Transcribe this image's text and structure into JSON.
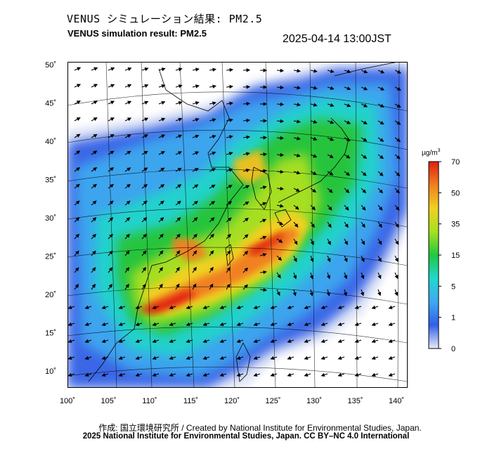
{
  "header": {
    "title_ja": "VENUS シミュレーション結果: PM2.5",
    "title_en": "VENUS simulation result: PM2.5",
    "timestamp": "2025-04-14 13:00JST"
  },
  "map": {
    "lat_labels": [
      "50˚",
      "45˚",
      "40˚",
      "35˚",
      "30˚",
      "25˚",
      "20˚",
      "15˚",
      "10˚"
    ],
    "lon_labels": [
      "100˚",
      "105˚",
      "110˚",
      "115˚",
      "120˚",
      "125˚",
      "130˚",
      "135˚",
      "140˚"
    ],
    "lat_ticks": [
      50,
      45,
      40,
      35,
      30,
      25,
      20,
      15,
      10
    ],
    "lon_ticks": [
      100,
      105,
      110,
      115,
      120,
      125,
      130,
      135,
      140
    ],
    "colors": {
      "clean": "#e8ecf8",
      "low": "#3060e8",
      "light_blue": "#40a8f0",
      "cyan": "#20d8d0",
      "green": "#20c840",
      "yellow_green": "#a8e020",
      "yellow": "#f0d020",
      "orange": "#f08020",
      "red": "#e02010",
      "land_outline": "#000000"
    }
  },
  "colorbar": {
    "unit_base": "µg/m",
    "unit_exp": "3",
    "ticks": [
      "70",
      "50",
      "35",
      "15",
      "5",
      "1",
      "0"
    ],
    "stops": [
      "#e02010",
      "#f08020",
      "#f0d020",
      "#a8e020",
      "#20c840",
      "#20d8d0",
      "#40a8f0",
      "#3060e8",
      "#e8ecf8"
    ]
  },
  "footer": {
    "credit_ja_en": "作成: 国立環境研究所 / Created by National Institute for Environmental Studies, Japan.",
    "copyright": "2025 National Institute for Environmental Studies, Japan. CC BY–NC 4.0 International"
  }
}
